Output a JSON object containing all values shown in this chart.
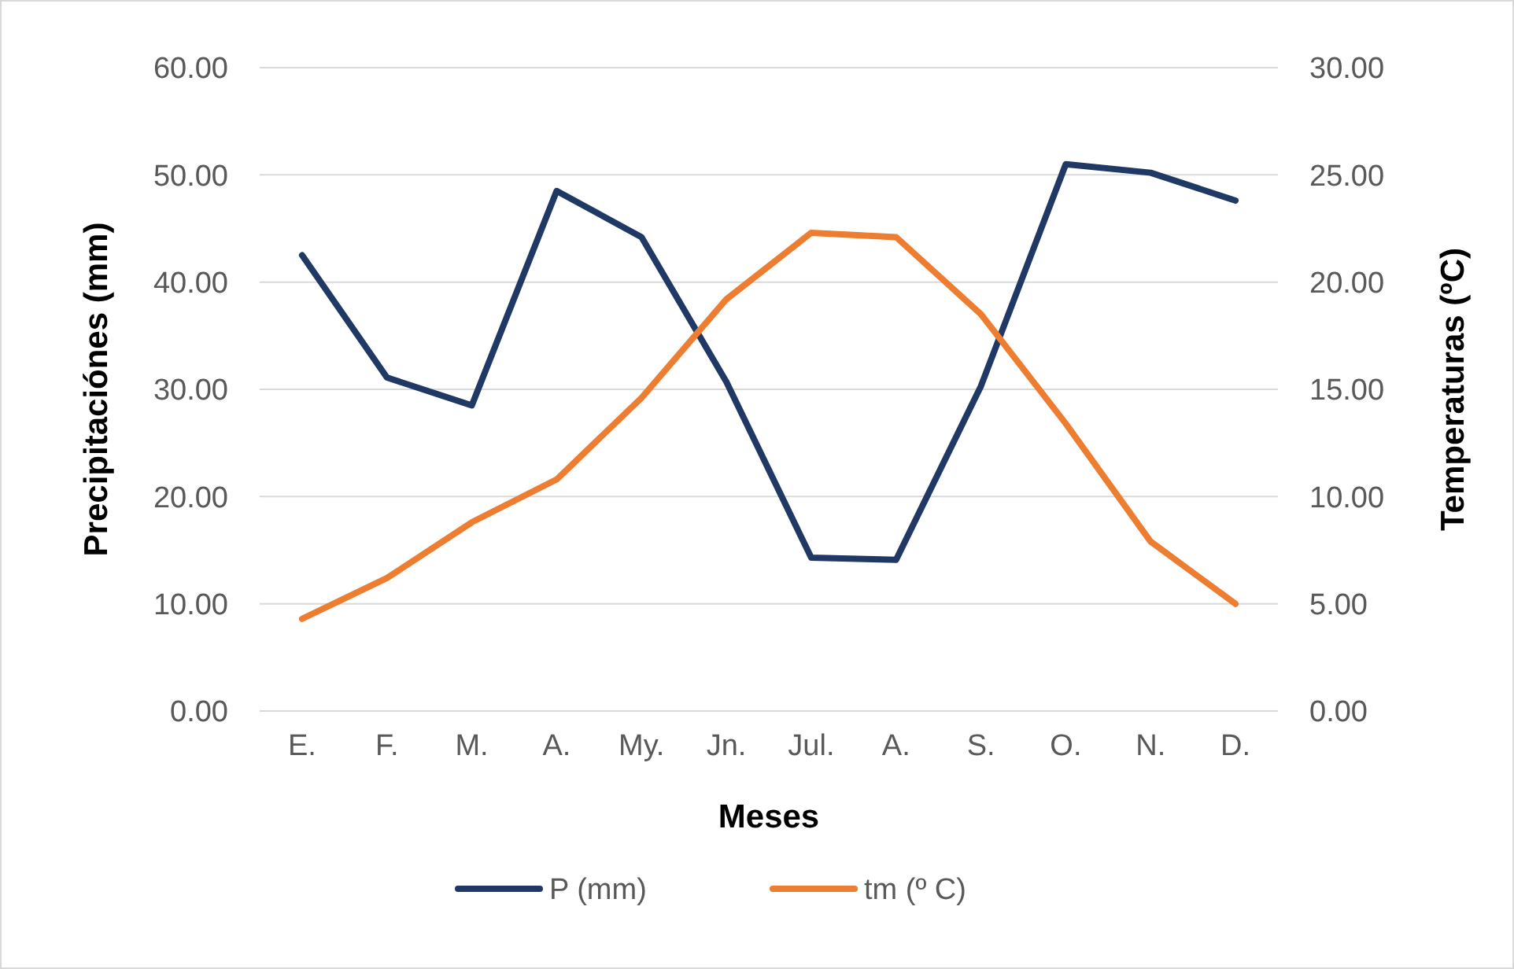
{
  "chart_data": {
    "type": "line",
    "xlabel": "Meses",
    "ylabel": "Precipitaciónes (mm)",
    "y2label": "Temperaturas (ºC)",
    "categories": [
      "E.",
      "F.",
      "M.",
      "A.",
      "My.",
      "Jn.",
      "Jul.",
      "A.",
      "S.",
      "O.",
      "N.",
      "D."
    ],
    "series": [
      {
        "name": "P (mm)",
        "color": "#203864",
        "values": [
          42.5,
          31.1,
          28.5,
          48.5,
          44.2,
          30.7,
          14.3,
          14.1,
          30.3,
          51.0,
          50.2,
          47.6
        ]
      },
      {
        "name": "tm (º C)",
        "color": "#ed7d31",
        "axis": "y2",
        "values": [
          4.3,
          6.2,
          8.8,
          10.8,
          14.6,
          19.2,
          22.3,
          22.1,
          18.5,
          13.4,
          7.9,
          5.0
        ]
      }
    ],
    "ylim": [
      0,
      60
    ],
    "yticks": [
      {
        "value": 0,
        "label": "0.00"
      },
      {
        "value": 10,
        "label": "10.00"
      },
      {
        "value": 20,
        "label": "20.00"
      },
      {
        "value": 30,
        "label": "30.00"
      },
      {
        "value": 40,
        "label": "40.00"
      },
      {
        "value": 50,
        "label": "50.00"
      },
      {
        "value": 60,
        "label": "60.00"
      }
    ],
    "y2lim": [
      0,
      30
    ],
    "y2ticks": [
      {
        "value": 0,
        "label": "0.00"
      },
      {
        "value": 5,
        "label": "5.00"
      },
      {
        "value": 10,
        "label": "10.00"
      },
      {
        "value": 15,
        "label": "15.00"
      },
      {
        "value": 20,
        "label": "20.00"
      },
      {
        "value": 25,
        "label": "25.00"
      },
      {
        "value": 30,
        "label": "30.00"
      }
    ],
    "grid": "y",
    "legend": "bottom",
    "marker": "none",
    "line_style": "solid"
  }
}
